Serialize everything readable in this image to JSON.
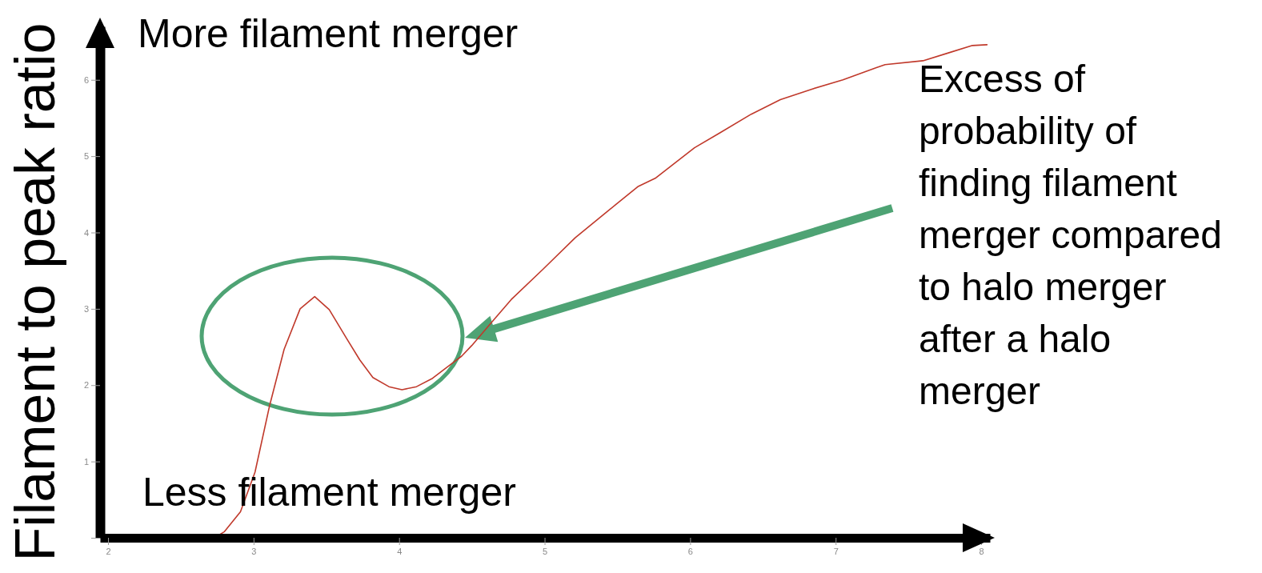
{
  "chart_data": {
    "type": "line",
    "ylabel": "Filament to peak ratio",
    "x": [
      2.73,
      2.8,
      2.91,
      3.01,
      3.11,
      3.21,
      3.32,
      3.42,
      3.52,
      3.64,
      3.73,
      3.82,
      3.93,
      4.02,
      4.12,
      4.23,
      4.34,
      4.43,
      4.5,
      4.63,
      4.77,
      4.99,
      5.21,
      5.44,
      5.64,
      5.76,
      6.03,
      6.2,
      6.42,
      6.62,
      6.84,
      7.05,
      7.28,
      7.34,
      7.6,
      7.77,
      7.94,
      8.04
    ],
    "values": [
      0,
      0.08,
      0.34,
      0.86,
      1.73,
      2.47,
      3.0,
      3.16,
      2.99,
      2.61,
      2.33,
      2.1,
      1.98,
      1.94,
      1.98,
      2.09,
      2.25,
      2.38,
      2.52,
      2.81,
      3.12,
      3.52,
      3.93,
      4.29,
      4.6,
      4.71,
      5.11,
      5.3,
      5.55,
      5.74,
      5.88,
      6.0,
      6.16,
      6.2,
      6.25,
      6.35,
      6.45,
      6.46
    ],
    "color": "#c0392b",
    "xlim": [
      1.945,
      8.06
    ],
    "ylim": [
      0,
      6.7
    ],
    "xticks": [
      2,
      3,
      4,
      5,
      6,
      7,
      8
    ],
    "yticks": [
      {
        "value": 0,
        "label": null
      },
      1,
      2,
      3,
      4,
      5,
      6
    ],
    "annotations": [
      "More filament merger",
      "Less filament merger",
      "Excess of probability of finding filament merger compared to halo merger after a halo merger"
    ]
  }
}
